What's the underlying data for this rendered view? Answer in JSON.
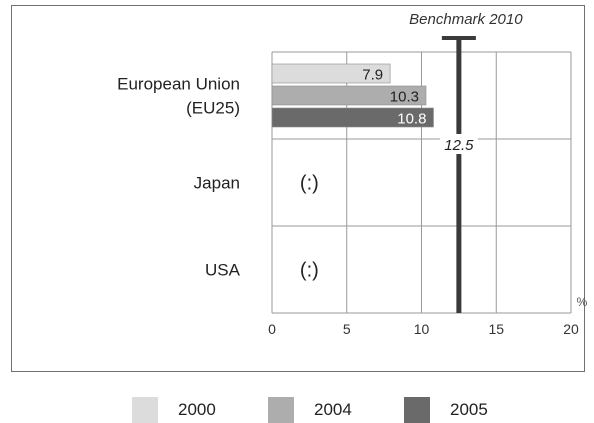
{
  "chart_data": {
    "type": "bar",
    "orientation": "horizontal",
    "title": "",
    "categories": [
      "European Union\n(EU25)",
      "Japan",
      "USA"
    ],
    "series": [
      {
        "name": "2000",
        "color": "#dcdcdc",
        "values": [
          7.9,
          null,
          null
        ]
      },
      {
        "name": "2004",
        "color": "#adadad",
        "values": [
          10.3,
          null,
          null
        ]
      },
      {
        "name": "2005",
        "color": "#6a6a6a",
        "values": [
          10.8,
          null,
          null
        ]
      }
    ],
    "missing_marker": "(:)",
    "x_ticks": [
      0,
      5,
      10,
      15,
      20
    ],
    "x_tick_labels": [
      "0",
      "5",
      "10",
      "15",
      "20"
    ],
    "xlim": [
      0,
      20
    ],
    "x_unit": "%",
    "grid": true,
    "benchmark": {
      "label": "Benchmark 2010",
      "value": 12.5,
      "value_label": "12.5",
      "color": "#3a3a3a"
    },
    "legend_position": "bottom"
  }
}
